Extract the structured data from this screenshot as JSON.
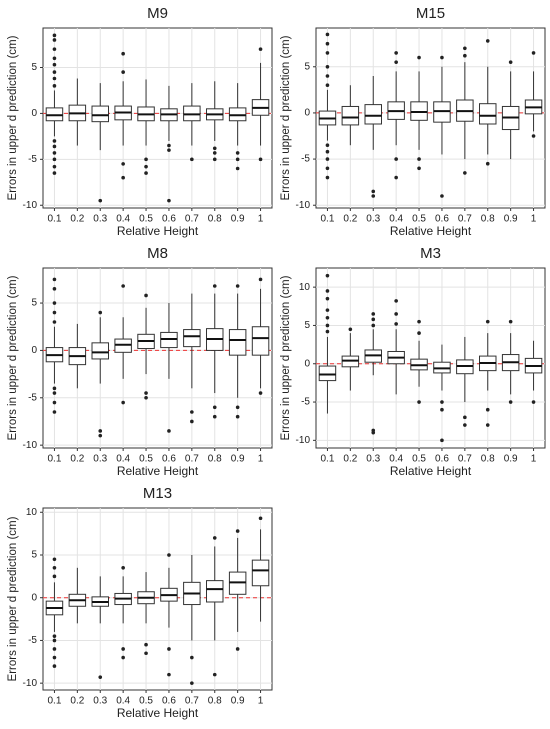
{
  "chart_data": [
    {
      "type": "box",
      "title": "M9",
      "xlabel": "Relative Height",
      "ylabel": "Errors in upper d prediction (cm)",
      "reference_line": 0,
      "grid": true,
      "categories": [
        "0.1",
        "0.2",
        "0.3",
        "0.4",
        "0.5",
        "0.6",
        "0.7",
        "0.8",
        "0.9",
        "1"
      ],
      "ylim": [
        -10.3,
        9.3
      ],
      "yticks": [
        -10,
        -5,
        0,
        5
      ],
      "boxes": [
        {
          "low": -2.5,
          "q1": -0.8,
          "median": -0.2,
          "q3": 0.6,
          "high": 2.5,
          "outliers": [
            -6.5,
            -5.8,
            -5,
            -4.3,
            -3.6,
            -3,
            3,
            3.8,
            4.5,
            5.3,
            6,
            7,
            8,
            8.5
          ]
        },
        {
          "low": -3.5,
          "q1": -0.8,
          "median": 0,
          "q3": 0.9,
          "high": 3.8,
          "outliers": []
        },
        {
          "low": -4,
          "q1": -0.9,
          "median": -0.2,
          "q3": 0.8,
          "high": 3.3,
          "outliers": [
            -9.5
          ]
        },
        {
          "low": -3.5,
          "q1": -0.7,
          "median": 0.1,
          "q3": 0.8,
          "high": 3.5,
          "outliers": [
            -7,
            -5.5,
            4.5,
            6.5
          ]
        },
        {
          "low": -3.5,
          "q1": -0.8,
          "median": -0.1,
          "q3": 0.7,
          "high": 3.7,
          "outliers": [
            -6.5,
            -5.8,
            -5
          ]
        },
        {
          "low": -3,
          "q1": -0.8,
          "median": -0.1,
          "q3": 0.5,
          "high": 3,
          "outliers": [
            -9.5,
            -4,
            -3.5
          ]
        },
        {
          "low": -3.5,
          "q1": -0.8,
          "median": -0.1,
          "q3": 0.8,
          "high": 3.3,
          "outliers": [
            -5
          ]
        },
        {
          "low": -3,
          "q1": -0.7,
          "median": -0.1,
          "q3": 0.5,
          "high": 3.5,
          "outliers": [
            -5,
            -4.3,
            -3.8
          ]
        },
        {
          "low": -3.5,
          "q1": -0.8,
          "median": -0.2,
          "q3": 0.6,
          "high": 3.3,
          "outliers": [
            -6,
            -5,
            -4.3
          ]
        },
        {
          "low": -3.5,
          "q1": -0.2,
          "median": 0.6,
          "q3": 1.5,
          "high": 5.5,
          "outliers": [
            -5,
            7
          ]
        }
      ]
    },
    {
      "type": "box",
      "title": "M15",
      "xlabel": "Relative Height",
      "ylabel": "Errors in upper d prediction (cm)",
      "reference_line": 0,
      "grid": true,
      "categories": [
        "0.1",
        "0.2",
        "0.3",
        "0.4",
        "0.5",
        "0.6",
        "0.7",
        "0.8",
        "0.9",
        "1"
      ],
      "ylim": [
        -10.3,
        9.2
      ],
      "yticks": [
        -10,
        -5,
        0,
        5
      ],
      "boxes": [
        {
          "low": -3,
          "q1": -1.3,
          "median": -0.6,
          "q3": 0.2,
          "high": 2.5,
          "outliers": [
            -7,
            -6,
            -5,
            -4.2,
            -3.5,
            3,
            4,
            5,
            6.5,
            7.5,
            8.5
          ]
        },
        {
          "low": -3.5,
          "q1": -1.3,
          "median": -0.5,
          "q3": 0.7,
          "high": 3,
          "outliers": []
        },
        {
          "low": -4,
          "q1": -1.2,
          "median": -0.3,
          "q3": 0.9,
          "high": 4,
          "outliers": [
            -9,
            -8.5
          ]
        },
        {
          "low": -3.5,
          "q1": -0.7,
          "median": 0.2,
          "q3": 1.2,
          "high": 4.5,
          "outliers": [
            -7,
            -5,
            5.5,
            6.5
          ]
        },
        {
          "low": -4,
          "q1": -0.8,
          "median": 0.1,
          "q3": 1.2,
          "high": 4.5,
          "outliers": [
            -6,
            -5,
            6
          ]
        },
        {
          "low": -4.5,
          "q1": -1,
          "median": 0.2,
          "q3": 1.2,
          "high": 5,
          "outliers": [
            -9,
            6
          ]
        },
        {
          "low": -5,
          "q1": -0.9,
          "median": 0.2,
          "q3": 1.4,
          "high": 5.5,
          "outliers": [
            -6.5,
            6.2,
            7
          ]
        },
        {
          "low": -4.5,
          "q1": -1.2,
          "median": -0.3,
          "q3": 1,
          "high": 5,
          "outliers": [
            -5.5,
            7.8
          ]
        },
        {
          "low": -5,
          "q1": -1.8,
          "median": -0.5,
          "q3": 0.7,
          "high": 4.5,
          "outliers": [
            5.5
          ]
        },
        {
          "low": -2,
          "q1": -0.1,
          "median": 0.6,
          "q3": 1.4,
          "high": 4.5,
          "outliers": [
            -2.5,
            6.5
          ]
        }
      ]
    },
    {
      "type": "box",
      "title": "M8",
      "xlabel": "Relative Height",
      "ylabel": "Errors in upper d prediction (cm)",
      "reference_line": 0,
      "grid": true,
      "categories": [
        "0.1",
        "0.2",
        "0.3",
        "0.4",
        "0.5",
        "0.6",
        "0.7",
        "0.8",
        "0.9",
        "1"
      ],
      "ylim": [
        -10.3,
        8.7
      ],
      "yticks": [
        -10,
        -5,
        0,
        5
      ],
      "boxes": [
        {
          "low": -3.5,
          "q1": -1.2,
          "median": -0.5,
          "q3": 0.3,
          "high": 2.5,
          "outliers": [
            -6.5,
            -5.5,
            -4.5,
            -4,
            3,
            4,
            5,
            6.5,
            7.5
          ]
        },
        {
          "low": -4,
          "q1": -1.5,
          "median": -0.6,
          "q3": 0.3,
          "high": 2.8,
          "outliers": []
        },
        {
          "low": -3.5,
          "q1": -0.9,
          "median": -0.2,
          "q3": 0.8,
          "high": 3.5,
          "outliers": [
            -9,
            -8.5,
            4
          ]
        },
        {
          "low": -3,
          "q1": -0.2,
          "median": 0.6,
          "q3": 1.2,
          "high": 3.5,
          "outliers": [
            -5.5,
            6.8
          ]
        },
        {
          "low": -2.5,
          "q1": 0.2,
          "median": 1,
          "q3": 1.7,
          "high": 4.5,
          "outliers": [
            -5,
            -4.5,
            5.8
          ]
        },
        {
          "low": -3,
          "q1": 0.3,
          "median": 1.2,
          "q3": 1.9,
          "high": 5,
          "outliers": [
            -8.5
          ]
        },
        {
          "low": -4,
          "q1": 0.4,
          "median": 1.5,
          "q3": 2.2,
          "high": 6,
          "outliers": [
            -7.5,
            -6.5
          ]
        },
        {
          "low": -4.5,
          "q1": 0,
          "median": 1.2,
          "q3": 2.3,
          "high": 6,
          "outliers": [
            -7,
            -6,
            6.8
          ]
        },
        {
          "low": -5,
          "q1": -0.5,
          "median": 1.1,
          "q3": 2.2,
          "high": 6,
          "outliers": [
            -7,
            -6,
            6.8
          ]
        },
        {
          "low": -4,
          "q1": -0.5,
          "median": 1.3,
          "q3": 2.5,
          "high": 6.5,
          "outliers": [
            -4.5,
            7.5
          ]
        }
      ]
    },
    {
      "type": "box",
      "title": "M3",
      "xlabel": "Relative Height",
      "ylabel": "Errors in upper d prediction (cm)",
      "reference_line": 0,
      "grid": true,
      "categories": [
        "0.1",
        "0.2",
        "0.3",
        "0.4",
        "0.5",
        "0.6",
        "0.7",
        "0.8",
        "0.9",
        "1"
      ],
      "ylim": [
        -11,
        12.5
      ],
      "yticks": [
        -10,
        -5,
        0,
        5,
        10
      ],
      "boxes": [
        {
          "low": -6.5,
          "q1": -2.2,
          "median": -1.4,
          "q3": -0.3,
          "high": 3.5,
          "outliers": [
            4.2,
            5,
            6,
            7,
            8.5,
            9.5,
            11.5
          ]
        },
        {
          "low": -3.5,
          "q1": -0.4,
          "median": 0.4,
          "q3": 1,
          "high": 4,
          "outliers": [
            4.5
          ]
        },
        {
          "low": -1.5,
          "q1": 0.2,
          "median": 1.1,
          "q3": 1.8,
          "high": 4.5,
          "outliers": [
            -9,
            -8.7,
            5,
            5.8,
            6.5
          ]
        },
        {
          "low": -4,
          "q1": 0,
          "median": 0.8,
          "q3": 1.6,
          "high": 4.5,
          "outliers": [
            5.2,
            6.5,
            8.2
          ]
        },
        {
          "low": -3,
          "q1": -0.8,
          "median": -0.2,
          "q3": 0.6,
          "high": 3,
          "outliers": [
            -5,
            4,
            5.5
          ]
        },
        {
          "low": -3.5,
          "q1": -1.2,
          "median": -0.6,
          "q3": 0.2,
          "high": 2.5,
          "outliers": [
            -10,
            -6,
            -5
          ]
        },
        {
          "low": -5,
          "q1": -1.3,
          "median": -0.3,
          "q3": 0.5,
          "high": 3.5,
          "outliers": [
            -8,
            -7
          ]
        },
        {
          "low": -3.5,
          "q1": -0.9,
          "median": 0.1,
          "q3": 1,
          "high": 4,
          "outliers": [
            -8,
            -6,
            5.5
          ]
        },
        {
          "low": -4,
          "q1": -0.9,
          "median": 0.2,
          "q3": 1.2,
          "high": 4,
          "outliers": [
            -5,
            5.5
          ]
        },
        {
          "low": -3.5,
          "q1": -1.2,
          "median": -0.3,
          "q3": 0.7,
          "high": 3,
          "outliers": [
            -5
          ]
        }
      ]
    },
    {
      "type": "box",
      "title": "M13",
      "xlabel": "Relative Height",
      "ylabel": "Errors in upper d prediction (cm)",
      "reference_line": 0,
      "grid": true,
      "categories": [
        "0.1",
        "0.2",
        "0.3",
        "0.4",
        "0.5",
        "0.6",
        "0.7",
        "0.8",
        "0.9",
        "1"
      ],
      "ylim": [
        -10.8,
        10.5
      ],
      "yticks": [
        -10,
        -5,
        0,
        5,
        10
      ],
      "boxes": [
        {
          "low": -4,
          "q1": -2,
          "median": -1.2,
          "q3": -0.4,
          "high": 1.8,
          "outliers": [
            -8,
            -7,
            -6,
            -5,
            -4.5,
            2.5,
            3.5,
            4.5
          ]
        },
        {
          "low": -3,
          "q1": -1,
          "median": -0.3,
          "q3": 0.4,
          "high": 3.5,
          "outliers": []
        },
        {
          "low": -3,
          "q1": -1,
          "median": -0.5,
          "q3": 0.1,
          "high": 2.5,
          "outliers": [
            -9.3
          ]
        },
        {
          "low": -3,
          "q1": -0.8,
          "median": -0.1,
          "q3": 0.5,
          "high": 2.5,
          "outliers": [
            -7,
            -6,
            3.5
          ]
        },
        {
          "low": -3,
          "q1": -0.7,
          "median": 0,
          "q3": 0.7,
          "high": 3,
          "outliers": [
            -6.5,
            -5.5
          ]
        },
        {
          "low": -3.5,
          "q1": -0.4,
          "median": 0.3,
          "q3": 1.1,
          "high": 3.5,
          "outliers": [
            -9,
            -6,
            5
          ]
        },
        {
          "low": -5,
          "q1": -0.8,
          "median": 0.5,
          "q3": 1.8,
          "high": 5,
          "outliers": [
            -10,
            -7
          ]
        },
        {
          "low": -5,
          "q1": -0.5,
          "median": 1,
          "q3": 2,
          "high": 6,
          "outliers": [
            -9,
            7
          ]
        },
        {
          "low": -4,
          "q1": 0.4,
          "median": 1.8,
          "q3": 3,
          "high": 7,
          "outliers": [
            -6,
            7.8
          ]
        },
        {
          "low": -2.8,
          "q1": 1.4,
          "median": 3.2,
          "q3": 4.4,
          "high": 8,
          "outliers": [
            9.3
          ]
        }
      ]
    }
  ]
}
